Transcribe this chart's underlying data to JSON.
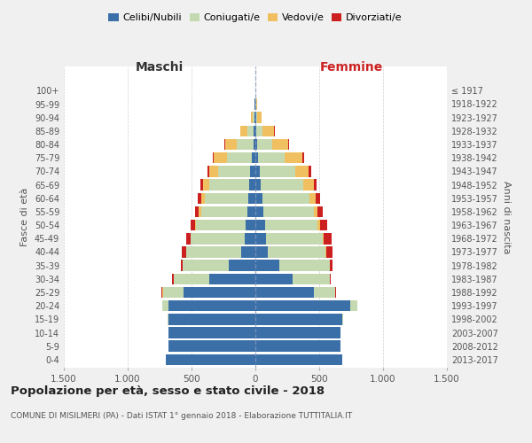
{
  "age_groups": [
    "0-4",
    "5-9",
    "10-14",
    "15-19",
    "20-24",
    "25-29",
    "30-34",
    "35-39",
    "40-44",
    "45-49",
    "50-54",
    "55-59",
    "60-64",
    "65-69",
    "70-74",
    "75-79",
    "80-84",
    "85-89",
    "90-94",
    "95-99",
    "100+"
  ],
  "birth_years": [
    "2013-2017",
    "2008-2012",
    "2003-2007",
    "1998-2002",
    "1993-1997",
    "1988-1992",
    "1983-1987",
    "1978-1982",
    "1973-1977",
    "1968-1972",
    "1963-1967",
    "1958-1962",
    "1953-1957",
    "1948-1952",
    "1943-1947",
    "1938-1942",
    "1933-1937",
    "1928-1932",
    "1923-1927",
    "1918-1922",
    "≤ 1917"
  ],
  "colors": {
    "celibi": "#3a6fa8",
    "coniugati": "#c5d9b0",
    "vedovi": "#f0c060",
    "divorziati": "#cc2020"
  },
  "males": {
    "celibi": [
      700,
      680,
      680,
      680,
      680,
      560,
      360,
      210,
      110,
      85,
      75,
      65,
      55,
      50,
      40,
      25,
      15,
      12,
      6,
      4,
      2
    ],
    "coniugati": [
      0,
      0,
      0,
      10,
      50,
      165,
      280,
      360,
      430,
      420,
      390,
      360,
      340,
      310,
      255,
      200,
      130,
      50,
      15,
      3,
      0
    ],
    "vedovi": [
      0,
      0,
      0,
      0,
      0,
      5,
      0,
      0,
      5,
      5,
      10,
      20,
      30,
      50,
      65,
      100,
      90,
      55,
      15,
      3,
      0
    ],
    "divorziati": [
      0,
      0,
      0,
      0,
      0,
      5,
      10,
      15,
      30,
      30,
      30,
      30,
      25,
      20,
      15,
      10,
      5,
      0,
      0,
      0,
      0
    ]
  },
  "females": {
    "celibi": [
      680,
      670,
      670,
      680,
      740,
      460,
      290,
      190,
      100,
      85,
      75,
      65,
      55,
      45,
      35,
      20,
      15,
      10,
      5,
      3,
      2
    ],
    "coniugati": [
      0,
      0,
      0,
      10,
      60,
      165,
      290,
      390,
      450,
      440,
      410,
      390,
      370,
      330,
      280,
      210,
      115,
      45,
      12,
      3,
      0
    ],
    "vedovi": [
      0,
      0,
      0,
      0,
      0,
      0,
      0,
      5,
      5,
      10,
      20,
      30,
      50,
      80,
      100,
      140,
      130,
      90,
      30,
      5,
      0
    ],
    "divorziati": [
      0,
      0,
      0,
      0,
      0,
      5,
      10,
      20,
      50,
      65,
      55,
      45,
      30,
      25,
      20,
      10,
      5,
      5,
      0,
      0,
      0
    ]
  },
  "title": "Popolazione per età, sesso e stato civile - 2018",
  "subtitle": "COMUNE DI MISILMERI (PA) - Dati ISTAT 1° gennaio 2018 - Elaborazione TUTTITALIA.IT",
  "xlabel_left": "Maschi",
  "xlabel_right": "Femmine",
  "ylabel_left": "Fasce di età",
  "ylabel_right": "Anni di nascita",
  "xlim": 1500,
  "bg_color": "#f0f0f0",
  "plot_bg_color": "#ffffff",
  "grid_color": "#cccccc"
}
